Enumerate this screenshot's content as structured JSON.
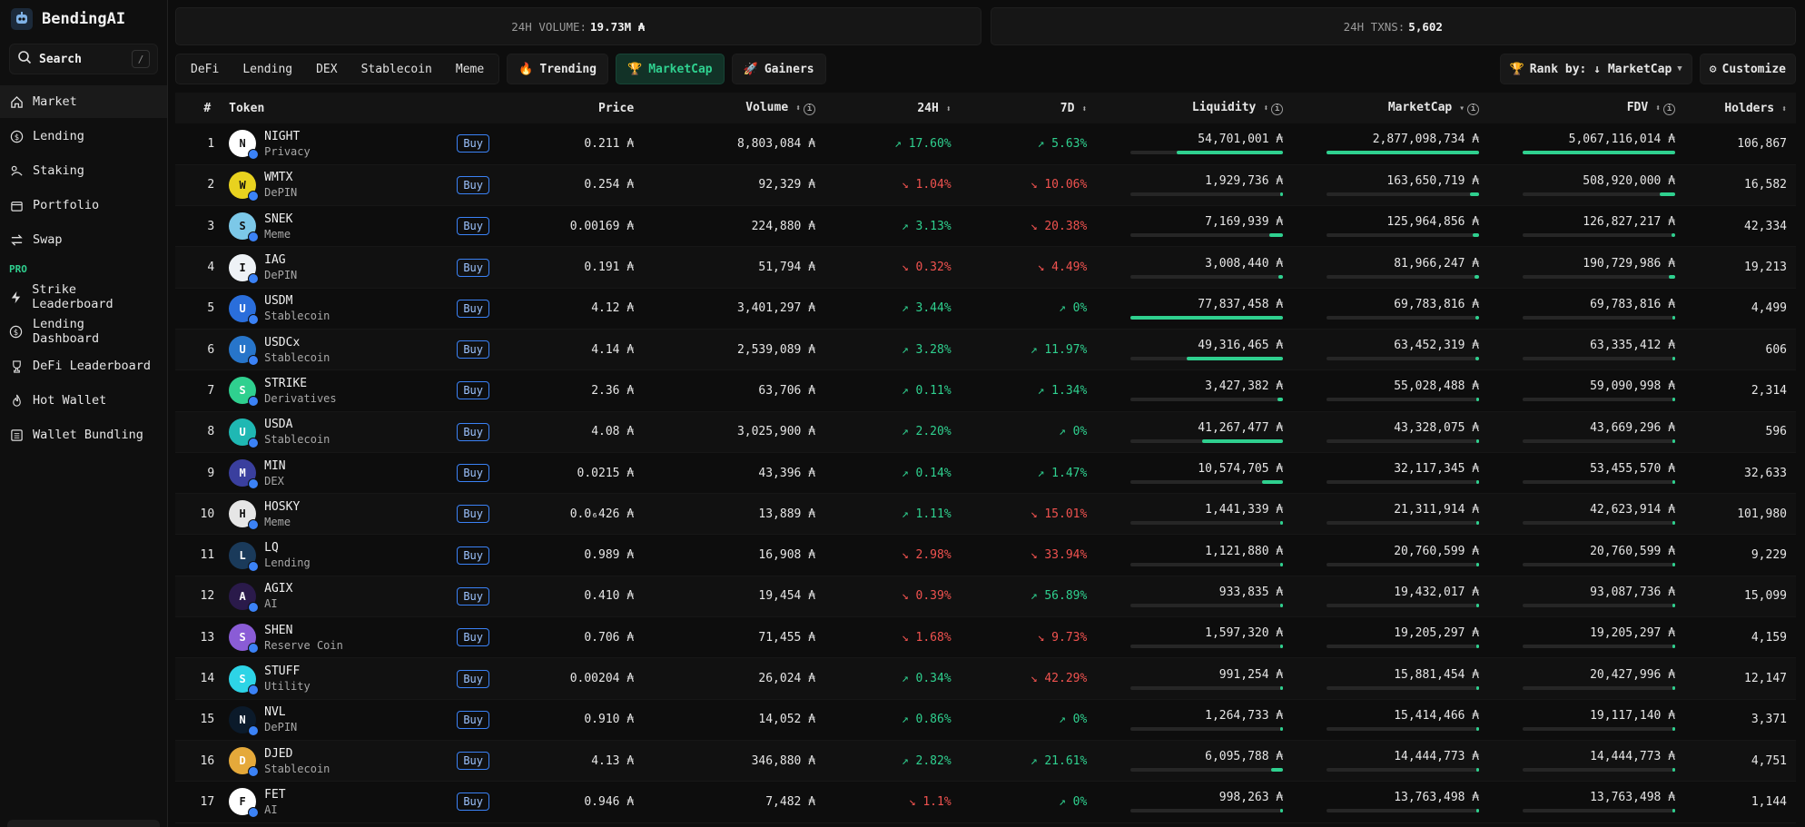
{
  "app": {
    "name": "BendingAI"
  },
  "search": {
    "label": "Search",
    "shortcut": "/"
  },
  "nav": [
    {
      "label": "Market",
      "icon": "home-icon",
      "active": true
    },
    {
      "label": "Lending",
      "icon": "dollar-circle-icon"
    },
    {
      "label": "Staking",
      "icon": "staking-icon"
    },
    {
      "label": "Portfolio",
      "icon": "folder-icon"
    },
    {
      "label": "Swap",
      "icon": "swap-arrows-icon"
    }
  ],
  "pro_label": "PRO",
  "pro_nav": [
    {
      "label": "Strike Leaderboard",
      "icon": "bolt-icon"
    },
    {
      "label": "Lending Dashboard",
      "icon": "dollar-circle-icon"
    },
    {
      "label": "DeFi Leaderboard",
      "icon": "trophy-icon"
    },
    {
      "label": "Hot Wallet",
      "icon": "flame-icon"
    },
    {
      "label": "Wallet Bundling",
      "icon": "list-icon"
    }
  ],
  "stats": {
    "volume_label": "24H VOLUME:",
    "volume_value": "19.73M ₳",
    "txns_label": "24H TXNS:",
    "txns_value": "5,602"
  },
  "categories": [
    "DeFi",
    "Lending",
    "DEX",
    "Stablecoin",
    "Meme"
  ],
  "sort_tabs": [
    {
      "label": "Trending",
      "icon": "flame-icon",
      "active": false
    },
    {
      "label": "MarketCap",
      "icon": "trophy-icon",
      "active": true
    },
    {
      "label": "Gainers",
      "icon": "rocket-icon",
      "active": false
    }
  ],
  "rank_by": "Rank by: ↓ MarketCap",
  "customize": "Customize",
  "columns": {
    "num": "#",
    "token": "Token",
    "price": "Price",
    "volume": "Volume",
    "h24": "24H",
    "d7": "7D",
    "liquidity": "Liquidity",
    "marketcap": "MarketCap",
    "fdv": "FDV",
    "holders": "Holders"
  },
  "colors": {
    "accent": "#2fd08f",
    "negative": "#f0524f",
    "buy": "#3b82f6"
  },
  "rows": [
    {
      "n": "1",
      "sym": "NIGHT",
      "cat": "Privacy",
      "price": "0.211 ₳",
      "volume": "8,803,084 ₳",
      "h24": "↗ 17.60%",
      "h24_up": true,
      "d7": "↗ 5.63%",
      "d7_up": true,
      "liq": "54,701,001 ₳",
      "liq_pct": 0.7,
      "mc": "2,877,098,734 ₳",
      "mc_pct": 1.0,
      "fdv": "5,067,116,014 ₳",
      "fdv_pct": 1.0,
      "holders": "106,867",
      "icon_color": "#ffffff"
    },
    {
      "n": "2",
      "sym": "WMTX",
      "cat": "DePIN",
      "price": "0.254 ₳",
      "volume": "92,329 ₳",
      "h24": "↘ 1.04%",
      "h24_up": false,
      "d7": "↘ 10.06%",
      "d7_up": false,
      "liq": "1,929,736 ₳",
      "liq_pct": 0.02,
      "mc": "163,650,719 ₳",
      "mc_pct": 0.06,
      "fdv": "508,920,000 ₳",
      "fdv_pct": 0.1,
      "holders": "16,582",
      "icon_color": "#e8d21f"
    },
    {
      "n": "3",
      "sym": "SNEK",
      "cat": "Meme",
      "price": "0.00169 ₳",
      "volume": "224,880 ₳",
      "h24": "↗ 3.13%",
      "h24_up": true,
      "d7": "↘ 20.38%",
      "d7_up": false,
      "liq": "7,169,939 ₳",
      "liq_pct": 0.09,
      "mc": "125,964,856 ₳",
      "mc_pct": 0.04,
      "fdv": "126,827,217 ₳",
      "fdv_pct": 0.025,
      "holders": "42,334",
      "icon_color": "#7cc8e8"
    },
    {
      "n": "4",
      "sym": "IAG",
      "cat": "DePIN",
      "price": "0.191 ₳",
      "volume": "51,794 ₳",
      "h24": "↘ 0.32%",
      "h24_up": false,
      "d7": "↘ 4.49%",
      "d7_up": false,
      "liq": "3,008,440 ₳",
      "liq_pct": 0.03,
      "mc": "81,966,247 ₳",
      "mc_pct": 0.03,
      "fdv": "190,729,986 ₳",
      "fdv_pct": 0.04,
      "holders": "19,213",
      "icon_color": "#eef2f6"
    },
    {
      "n": "5",
      "sym": "USDM",
      "cat": "Stablecoin",
      "price": "4.12 ₳",
      "volume": "3,401,297 ₳",
      "h24": "↗ 3.44%",
      "h24_up": true,
      "d7": "↗ 0%",
      "d7_up": true,
      "liq": "77,837,458 ₳",
      "liq_pct": 1.0,
      "mc": "69,783,816 ₳",
      "mc_pct": 0.025,
      "fdv": "69,783,816 ₳",
      "fdv_pct": 0.015,
      "holders": "4,499",
      "icon_color": "#2a6edb"
    },
    {
      "n": "6",
      "sym": "USDCx",
      "cat": "Stablecoin",
      "price": "4.14 ₳",
      "volume": "2,539,089 ₳",
      "h24": "↗ 3.28%",
      "h24_up": true,
      "d7": "↗ 11.97%",
      "d7_up": true,
      "liq": "49,316,465 ₳",
      "liq_pct": 0.63,
      "mc": "63,452,319 ₳",
      "mc_pct": 0.022,
      "fdv": "63,335,412 ₳",
      "fdv_pct": 0.013,
      "holders": "606",
      "icon_color": "#2775ca"
    },
    {
      "n": "7",
      "sym": "STRIKE",
      "cat": "Derivatives",
      "price": "2.36 ₳",
      "volume": "63,706 ₳",
      "h24": "↗ 0.11%",
      "h24_up": true,
      "d7": "↗ 1.34%",
      "d7_up": true,
      "liq": "3,427,382 ₳",
      "liq_pct": 0.04,
      "mc": "55,028,488 ₳",
      "mc_pct": 0.02,
      "fdv": "59,090,998 ₳",
      "fdv_pct": 0.012,
      "holders": "2,314",
      "icon_color": "#2fd08f"
    },
    {
      "n": "8",
      "sym": "USDA",
      "cat": "Stablecoin",
      "price": "4.08 ₳",
      "volume": "3,025,900 ₳",
      "h24": "↗ 2.20%",
      "h24_up": true,
      "d7": "↗ 0%",
      "d7_up": true,
      "liq": "41,267,477 ₳",
      "liq_pct": 0.53,
      "mc": "43,328,075 ₳",
      "mc_pct": 0.015,
      "fdv": "43,669,296 ₳",
      "fdv_pct": 0.009,
      "holders": "596",
      "icon_color": "#1fb8b3"
    },
    {
      "n": "9",
      "sym": "MIN",
      "cat": "DEX",
      "price": "0.0215 ₳",
      "volume": "43,396 ₳",
      "h24": "↗ 0.14%",
      "h24_up": true,
      "d7": "↗ 1.47%",
      "d7_up": true,
      "liq": "10,574,705 ₳",
      "liq_pct": 0.14,
      "mc": "32,117,345 ₳",
      "mc_pct": 0.011,
      "fdv": "53,455,570 ₳",
      "fdv_pct": 0.011,
      "holders": "32,633",
      "icon_color": "#3a3f9e"
    },
    {
      "n": "10",
      "sym": "HOSKY",
      "cat": "Meme",
      "price": "0.0₆426 ₳",
      "volume": "13,889 ₳",
      "h24": "↗ 1.11%",
      "h24_up": true,
      "d7": "↘ 15.01%",
      "d7_up": false,
      "liq": "1,441,339 ₳",
      "liq_pct": 0.02,
      "mc": "21,311,914 ₳",
      "mc_pct": 0.007,
      "fdv": "42,623,914 ₳",
      "fdv_pct": 0.008,
      "holders": "101,980",
      "icon_color": "#e6e6e6"
    },
    {
      "n": "11",
      "sym": "LQ",
      "cat": "Lending",
      "price": "0.989 ₳",
      "volume": "16,908 ₳",
      "h24": "↘ 2.98%",
      "h24_up": false,
      "d7": "↘ 33.94%",
      "d7_up": false,
      "liq": "1,121,880 ₳",
      "liq_pct": 0.015,
      "mc": "20,760,599 ₳",
      "mc_pct": 0.007,
      "fdv": "20,760,599 ₳",
      "fdv_pct": 0.004,
      "holders": "9,229",
      "icon_color": "#1a3a5a"
    },
    {
      "n": "12",
      "sym": "AGIX",
      "cat": "AI",
      "price": "0.410 ₳",
      "volume": "19,454 ₳",
      "h24": "↘ 0.39%",
      "h24_up": false,
      "d7": "↗ 56.89%",
      "d7_up": true,
      "liq": "933,835 ₳",
      "liq_pct": 0.012,
      "mc": "19,432,017 ₳",
      "mc_pct": 0.007,
      "fdv": "93,087,736 ₳",
      "fdv_pct": 0.018,
      "holders": "15,099",
      "icon_color": "#2a1a4a"
    },
    {
      "n": "13",
      "sym": "SHEN",
      "cat": "Reserve Coin",
      "price": "0.706 ₳",
      "volume": "71,455 ₳",
      "h24": "↘ 1.68%",
      "h24_up": false,
      "d7": "↘ 9.73%",
      "d7_up": false,
      "liq": "1,597,320 ₳",
      "liq_pct": 0.02,
      "mc": "19,205,297 ₳",
      "mc_pct": 0.007,
      "fdv": "19,205,297 ₳",
      "fdv_pct": 0.004,
      "holders": "4,159",
      "icon_color": "#8a5cd6"
    },
    {
      "n": "14",
      "sym": "STUFF",
      "cat": "Utility",
      "price": "0.00204 ₳",
      "volume": "26,024 ₳",
      "h24": "↗ 0.34%",
      "h24_up": true,
      "d7": "↘ 42.29%",
      "d7_up": false,
      "liq": "991,254 ₳",
      "liq_pct": 0.013,
      "mc": "15,881,454 ₳",
      "mc_pct": 0.006,
      "fdv": "20,427,996 ₳",
      "fdv_pct": 0.004,
      "holders": "12,147",
      "icon_color": "#2dd4e6"
    },
    {
      "n": "15",
      "sym": "NVL",
      "cat": "DePIN",
      "price": "0.910 ₳",
      "volume": "14,052 ₳",
      "h24": "↗ 0.86%",
      "h24_up": true,
      "d7": "↗ 0%",
      "d7_up": true,
      "liq": "1,264,733 ₳",
      "liq_pct": 0.016,
      "mc": "15,414,466 ₳",
      "mc_pct": 0.005,
      "fdv": "19,117,140 ₳",
      "fdv_pct": 0.004,
      "holders": "3,371",
      "icon_color": "#0b1a2a"
    },
    {
      "n": "16",
      "sym": "DJED",
      "cat": "Stablecoin",
      "price": "4.13 ₳",
      "volume": "346,880 ₳",
      "h24": "↗ 2.82%",
      "h24_up": true,
      "d7": "↗ 21.61%",
      "d7_up": true,
      "liq": "6,095,788 ₳",
      "liq_pct": 0.08,
      "mc": "14,444,773 ₳",
      "mc_pct": 0.005,
      "fdv": "14,444,773 ₳",
      "fdv_pct": 0.003,
      "holders": "4,751",
      "icon_color": "#e5a93a"
    },
    {
      "n": "17",
      "sym": "FET",
      "cat": "AI",
      "price": "0.946 ₳",
      "volume": "7,482 ₳",
      "h24": "↘ 1.1%",
      "h24_up": false,
      "d7": "↗ 0%",
      "d7_up": true,
      "liq": "998,263 ₳",
      "liq_pct": 0.013,
      "mc": "13,763,498 ₳",
      "mc_pct": 0.005,
      "fdv": "13,763,498 ₳",
      "fdv_pct": 0.003,
      "holders": "1,144",
      "icon_color": "#ffffff"
    }
  ],
  "buy_label": "Buy"
}
